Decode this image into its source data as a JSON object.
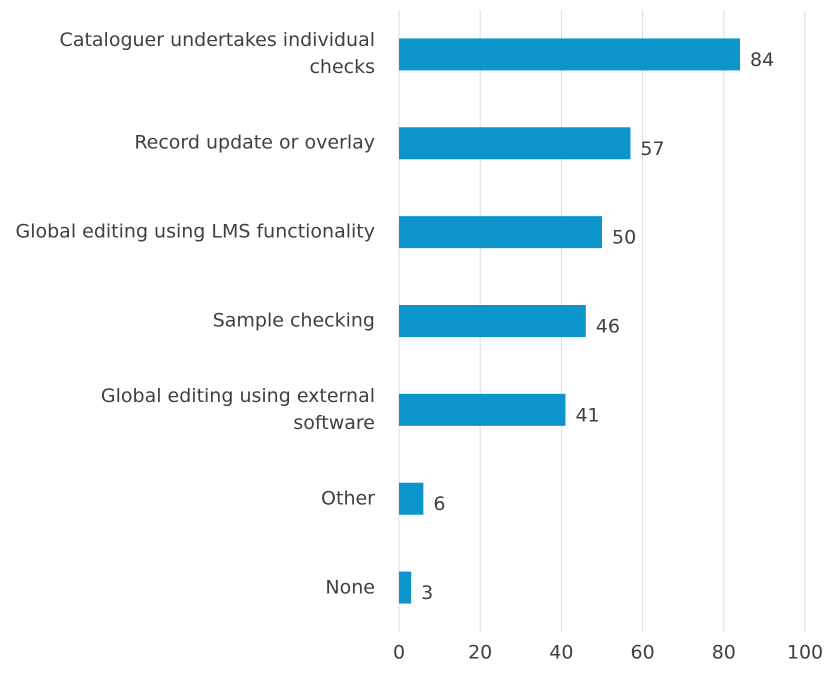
{
  "chart_data": {
    "type": "bar",
    "orientation": "horizontal",
    "categories": [
      "Cataloguer undertakes individual checks",
      "Record update or overlay",
      "Global editing using LMS functionality",
      "Sample checking",
      "Global editing using external software",
      "Other",
      "None"
    ],
    "values": [
      84,
      57,
      50,
      46,
      41,
      6,
      3
    ],
    "color": "#0b95cb",
    "xlim": [
      0,
      100
    ],
    "xticks": [
      0,
      20,
      40,
      60,
      80,
      100
    ],
    "grid": true
  }
}
